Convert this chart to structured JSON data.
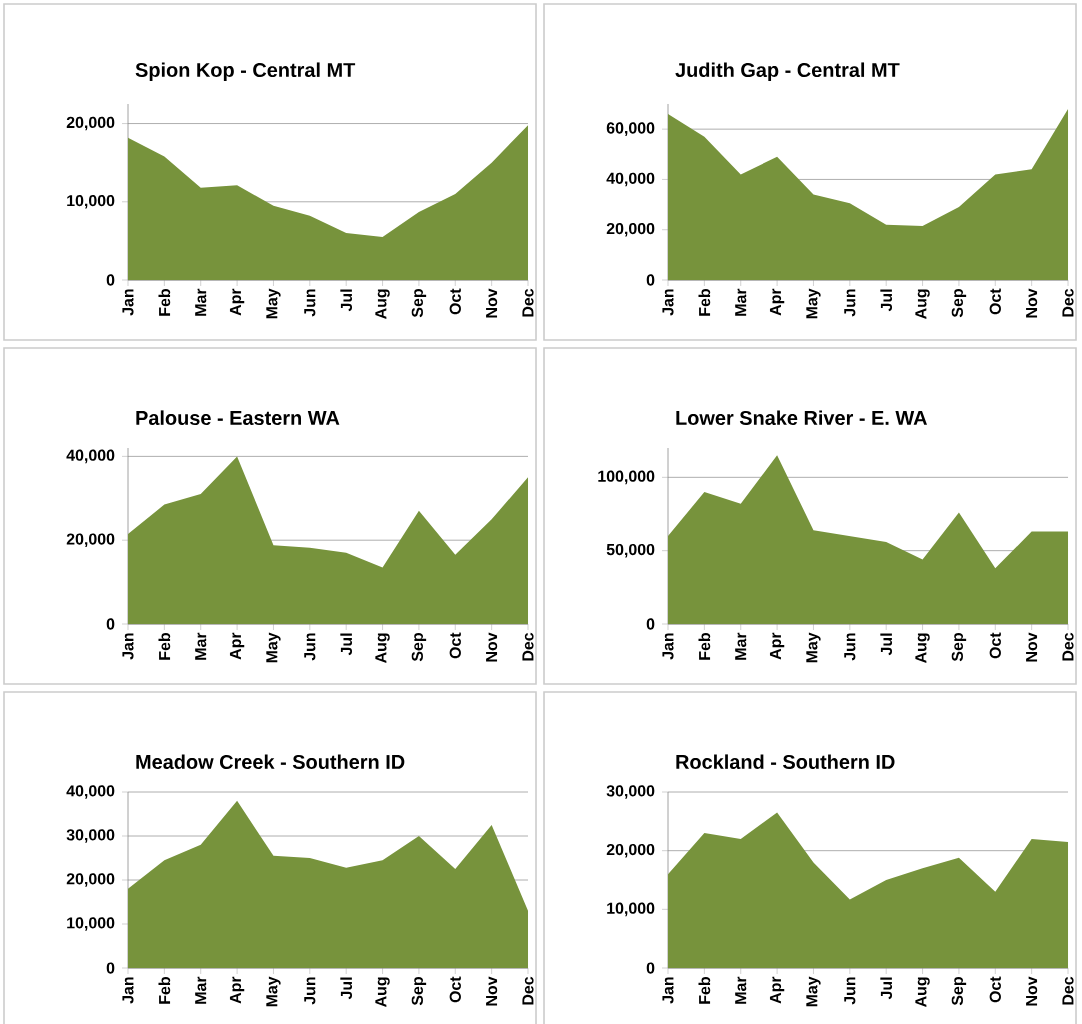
{
  "chart_data": [
    {
      "type": "area",
      "title": "Spion Kop - Central MT",
      "color": "#77933c",
      "grid": "y",
      "categories": [
        "Jan",
        "Feb",
        "Mar",
        "Apr",
        "May",
        "Jun",
        "Jul",
        "Aug",
        "Sep",
        "Oct",
        "Nov",
        "Dec"
      ],
      "values": [
        18200,
        15800,
        11800,
        12100,
        9500,
        8200,
        6000,
        5500,
        8700,
        11000,
        15000,
        19800
      ],
      "ylim": [
        0,
        22500
      ],
      "yticks": [
        {
          "value": 0,
          "label": "0"
        },
        {
          "value": 10000,
          "label": "10,000"
        },
        {
          "value": 20000,
          "label": "20,000"
        }
      ]
    },
    {
      "type": "area",
      "title": "Judith Gap - Central MT",
      "color": "#77933c",
      "grid": "y",
      "categories": [
        "Jan",
        "Feb",
        "Mar",
        "Apr",
        "May",
        "Jun",
        "Jul",
        "Aug",
        "Sep",
        "Oct",
        "Nov",
        "Dec"
      ],
      "values": [
        66000,
        57000,
        42000,
        49000,
        34000,
        30500,
        22000,
        21500,
        29000,
        42000,
        44000,
        68000
      ],
      "ylim": [
        0,
        70000
      ],
      "yticks": [
        {
          "value": 0,
          "label": "0"
        },
        {
          "value": 20000,
          "label": "20,000"
        },
        {
          "value": 40000,
          "label": "40,000"
        },
        {
          "value": 60000,
          "label": "60,000"
        }
      ]
    },
    {
      "type": "area",
      "title": "Palouse - Eastern WA",
      "color": "#77933c",
      "grid": "y",
      "categories": [
        "Jan",
        "Feb",
        "Mar",
        "Apr",
        "May",
        "Jun",
        "Jul",
        "Aug",
        "Sep",
        "Oct",
        "Nov",
        "Dec"
      ],
      "values": [
        21500,
        28500,
        31000,
        40000,
        18800,
        18200,
        17000,
        13500,
        27000,
        16500,
        25000,
        35000
      ],
      "ylim": [
        0,
        42000
      ],
      "yticks": [
        {
          "value": 0,
          "label": "0"
        },
        {
          "value": 20000,
          "label": "20,000"
        },
        {
          "value": 40000,
          "label": "40,000"
        }
      ]
    },
    {
      "type": "area",
      "title": "Lower Snake River - E. WA",
      "color": "#77933c",
      "grid": "y",
      "categories": [
        "Jan",
        "Feb",
        "Mar",
        "Apr",
        "May",
        "Jun",
        "Jul",
        "Aug",
        "Sep",
        "Oct",
        "Nov",
        "Dec"
      ],
      "values": [
        60000,
        90000,
        82000,
        115000,
        64000,
        60000,
        56000,
        44000,
        76000,
        38000,
        63000,
        63000
      ],
      "ylim": [
        0,
        120000
      ],
      "yticks": [
        {
          "value": 0,
          "label": "0"
        },
        {
          "value": 50000,
          "label": "50,000"
        },
        {
          "value": 100000,
          "label": "100,000"
        }
      ]
    },
    {
      "type": "area",
      "title": "Meadow Creek - Southern ID",
      "color": "#77933c",
      "grid": "y",
      "categories": [
        "Jan",
        "Feb",
        "Mar",
        "Apr",
        "May",
        "Jun",
        "Jul",
        "Aug",
        "Sep",
        "Oct",
        "Nov",
        "Dec"
      ],
      "values": [
        18000,
        24500,
        28000,
        38000,
        25500,
        25000,
        22800,
        24500,
        30000,
        22500,
        32500,
        13000
      ],
      "ylim": [
        0,
        40000
      ],
      "yticks": [
        {
          "value": 0,
          "label": "0"
        },
        {
          "value": 10000,
          "label": "10,000"
        },
        {
          "value": 20000,
          "label": "20,000"
        },
        {
          "value": 30000,
          "label": "30,000"
        },
        {
          "value": 40000,
          "label": "40,000"
        }
      ]
    },
    {
      "type": "area",
      "title": "Rockland - Southern ID",
      "color": "#77933c",
      "grid": "y",
      "categories": [
        "Jan",
        "Feb",
        "Mar",
        "Apr",
        "May",
        "Jun",
        "Jul",
        "Aug",
        "Sep",
        "Oct",
        "Nov",
        "Dec"
      ],
      "values": [
        16000,
        23000,
        22000,
        26500,
        18000,
        11700,
        15000,
        17000,
        18800,
        13000,
        22000,
        21500
      ],
      "ylim": [
        0,
        30000
      ],
      "yticks": [
        {
          "value": 0,
          "label": "0"
        },
        {
          "value": 10000,
          "label": "10,000"
        },
        {
          "value": 20000,
          "label": "20,000"
        },
        {
          "value": 30000,
          "label": "30,000"
        }
      ]
    }
  ]
}
